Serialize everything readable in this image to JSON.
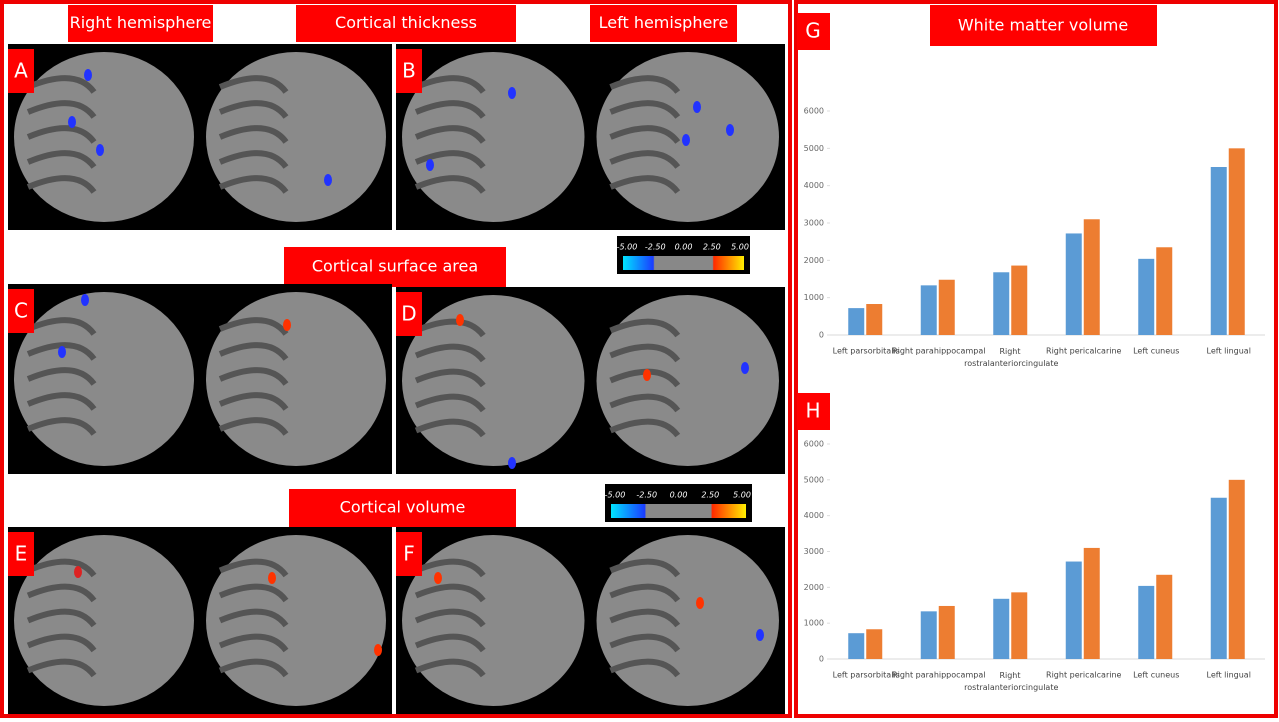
{
  "headers": {
    "right_hemisphere": "Right hemisphere",
    "cortical_thickness": "Cortical thickness",
    "left_hemisphere": "Left hemisphere",
    "cortical_surface_area": "Cortical surface area",
    "cortical_volume": "Cortical volume"
  },
  "panel_letters": [
    "A",
    "B",
    "C",
    "D",
    "E",
    "F",
    "G",
    "H"
  ],
  "colorbars": [
    {
      "labels": [
        "-5.00",
        "-2.50",
        "0.00",
        "2.50",
        "5.00"
      ]
    },
    {
      "labels": [
        "-5.00",
        "-2.50",
        "0.00",
        "2.50",
        "5.00"
      ]
    }
  ],
  "chart_data": [
    {
      "type": "bar",
      "title": "White matter volume",
      "categories": [
        "Left parsorbitalis",
        "Right parahippocampal",
        "Right rostralanteriorcingulate",
        "Right pericalcarine",
        "Left cuneus",
        "Left lingual"
      ],
      "series": [
        {
          "color": "#5b9bd5",
          "values": [
            720,
            1330,
            1680,
            2720,
            2040,
            4500
          ]
        },
        {
          "color": "#ed7d31",
          "values": [
            830,
            1480,
            1860,
            3100,
            2350,
            5000
          ]
        }
      ],
      "ylim": [
        0,
        6000
      ],
      "yticks": [
        0,
        1000,
        2000,
        3000,
        4000,
        5000,
        6000
      ]
    },
    {
      "type": "bar",
      "categories": [
        "Left parsorbitalis",
        "Right parahippocampal",
        "Right rostralanteriorcingulate",
        "Right pericalcarine",
        "Left cuneus",
        "Left lingual"
      ],
      "series": [
        {
          "color": "#5b9bd5",
          "values": [
            720,
            1330,
            1680,
            2720,
            2040,
            4500
          ]
        },
        {
          "color": "#ed7d31",
          "values": [
            830,
            1480,
            1860,
            3100,
            2350,
            5000
          ]
        }
      ],
      "ylim": [
        0,
        6000
      ],
      "yticks": [
        0,
        1000,
        2000,
        3000,
        4000,
        5000,
        6000
      ]
    }
  ]
}
